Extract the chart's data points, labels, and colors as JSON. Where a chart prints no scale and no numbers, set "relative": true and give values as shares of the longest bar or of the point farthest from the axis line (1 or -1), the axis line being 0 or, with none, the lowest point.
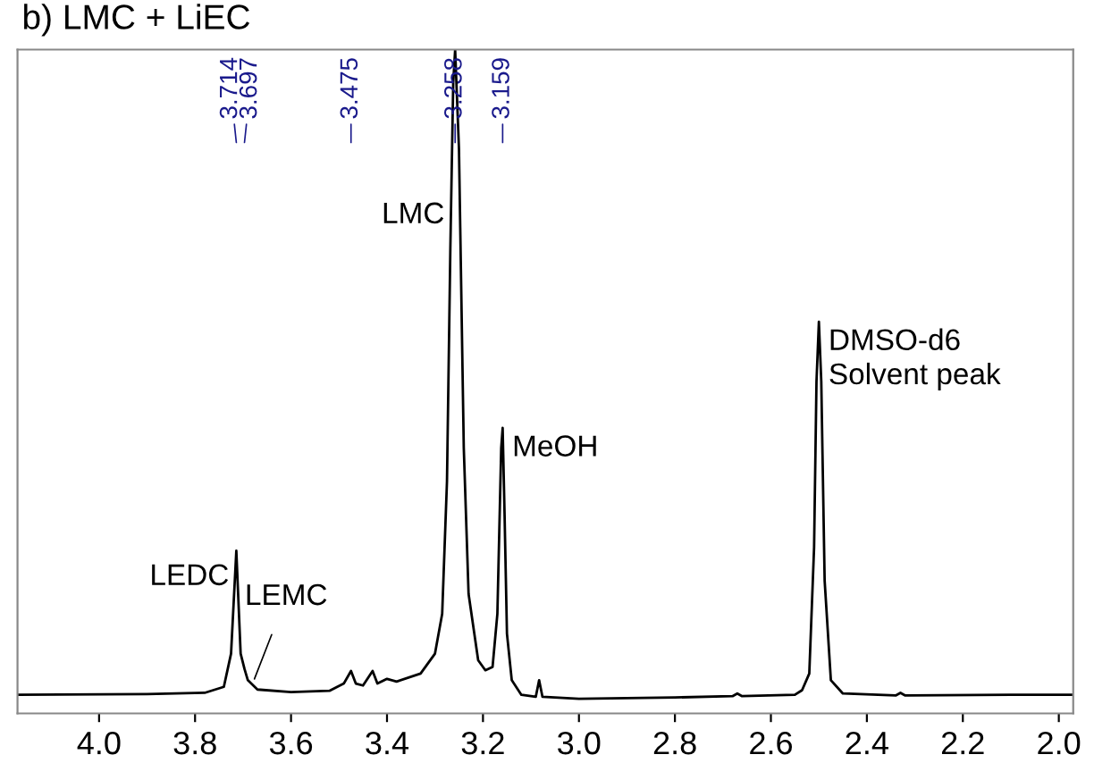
{
  "chart_data": {
    "type": "line",
    "title": "b) LMC + LiEC",
    "relative": true,
    "tick_labels": "x",
    "grid": false,
    "legend": false,
    "marker": "none",
    "line_style": "solid",
    "xlim": [
      4.17,
      1.97
    ],
    "xticks": [
      {
        "value": 4.0,
        "label": "4.0"
      },
      {
        "value": 3.8,
        "label": "3.8"
      },
      {
        "value": 3.6,
        "label": "3.6"
      },
      {
        "value": 3.4,
        "label": "3.4"
      },
      {
        "value": 3.2,
        "label": "3.2"
      },
      {
        "value": 3.0,
        "label": "3.0"
      },
      {
        "value": 2.8,
        "label": "2.8"
      },
      {
        "value": 2.6,
        "label": "2.6"
      },
      {
        "value": 2.4,
        "label": "2.4"
      },
      {
        "value": 2.2,
        "label": "2.2"
      },
      {
        "value": 2.0,
        "label": "2.0"
      }
    ],
    "series": [
      {
        "color": "#000000",
        "x": [
          4.17,
          3.9,
          3.78,
          3.74,
          3.725,
          3.714,
          3.705,
          3.697,
          3.69,
          3.67,
          3.6,
          3.52,
          3.49,
          3.475,
          3.465,
          3.45,
          3.43,
          3.42,
          3.4,
          3.38,
          3.33,
          3.3,
          3.285,
          3.275,
          3.268,
          3.262,
          3.258,
          3.25,
          3.24,
          3.23,
          3.21,
          3.195,
          3.18,
          3.17,
          3.162,
          3.159,
          3.155,
          3.15,
          3.14,
          3.12,
          3.09,
          3.083,
          3.076,
          3.0,
          2.8,
          2.68,
          2.67,
          2.66,
          2.55,
          2.535,
          2.52,
          2.51,
          2.505,
          2.5,
          2.495,
          2.488,
          2.475,
          2.45,
          2.34,
          2.33,
          2.32,
          2.1,
          1.97
        ],
        "values": [
          0.028,
          0.029,
          0.031,
          0.04,
          0.09,
          0.245,
          0.09,
          0.067,
          0.05,
          0.036,
          0.032,
          0.034,
          0.045,
          0.064,
          0.045,
          0.042,
          0.064,
          0.045,
          0.052,
          0.048,
          0.06,
          0.09,
          0.15,
          0.35,
          0.7,
          0.95,
          1.0,
          0.85,
          0.4,
          0.18,
          0.08,
          0.065,
          0.07,
          0.15,
          0.4,
          0.43,
          0.3,
          0.12,
          0.05,
          0.028,
          0.025,
          0.05,
          0.025,
          0.022,
          0.024,
          0.026,
          0.03,
          0.026,
          0.028,
          0.035,
          0.06,
          0.25,
          0.5,
          0.59,
          0.5,
          0.2,
          0.05,
          0.03,
          0.027,
          0.031,
          0.027,
          0.028,
          0.028
        ]
      }
    ],
    "annotations": [
      {
        "text": "3.714",
        "x": 3.714
      },
      {
        "text": "3.697",
        "x": 3.697
      },
      {
        "text": "3.475",
        "x": 3.475
      },
      {
        "text": "3.258",
        "x": 3.258
      },
      {
        "text": "3.159",
        "x": 3.159
      },
      {
        "text": "LEDC",
        "x": 3.714,
        "y": 0.245
      },
      {
        "text": "LEMC",
        "x": 3.68,
        "y": 0.045
      },
      {
        "text": "LMC",
        "x": 3.27,
        "y": 0.75
      },
      {
        "text": "MeOH",
        "x": 3.159,
        "y": 0.43
      },
      {
        "text": "DMSO-d6\nSolvent peak",
        "x": 2.5,
        "y": 0.59
      }
    ]
  }
}
